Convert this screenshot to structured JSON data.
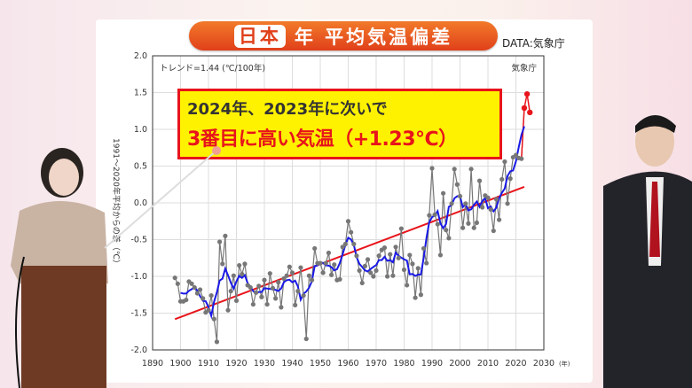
{
  "header": {
    "title_tag": "日本",
    "title": "年 平均気温偏差",
    "source": "DATA:気象庁"
  },
  "callout": {
    "line1": "2024年、2023年に次いで",
    "line2": "3番目に高い気温（+1.23℃）"
  },
  "colors": {
    "annual": "#777777",
    "running_mean": "#1a1ae6",
    "trend": "#e8141b",
    "highlight": "#e8141b"
  },
  "chart_data": {
    "type": "line",
    "trend_label": "トレンド=1.44 (℃/100年)",
    "agency_label": "気象庁",
    "ylabel": "1991～2020年平均からの差（℃）",
    "xunit": "(年)",
    "xlim": [
      1890,
      2030
    ],
    "ylim": [
      -2.0,
      2.0
    ],
    "xticks": [
      1890,
      1900,
      1910,
      1920,
      1930,
      1940,
      1950,
      1960,
      1970,
      1980,
      1990,
      2000,
      2010,
      2020,
      2030
    ],
    "yticks": [
      "2.0",
      "1.5",
      "1.0",
      "0.5",
      "0.0",
      "-0.5",
      "-1.0",
      "-1.5",
      "-2.0"
    ],
    "trend_per_100yr": 1.44,
    "start_year": 1898,
    "annual": [
      -1.02,
      -1.1,
      -1.34,
      -1.34,
      -1.32,
      -1.07,
      -1.1,
      -1.15,
      -1.23,
      -1.18,
      -1.3,
      -1.49,
      -1.46,
      -1.26,
      -1.58,
      -1.89,
      -0.53,
      -0.83,
      -0.45,
      -1.46,
      -1.2,
      -0.99,
      -1.33,
      -0.85,
      -0.97,
      -0.83,
      -1.12,
      -1.15,
      -1.38,
      -1.22,
      -1.13,
      -1.28,
      -1.05,
      -1.38,
      -0.96,
      -1.16,
      -1.3,
      -1.08,
      -1.42,
      -1.03,
      -0.99,
      -0.87,
      -0.95,
      -1.39,
      -1.2,
      -0.88,
      -1.26,
      -1.85,
      -0.99,
      -1.05,
      -0.62,
      -0.82,
      -0.82,
      -0.95,
      -0.82,
      -0.68,
      -0.98,
      -0.84,
      -1.05,
      -1.04,
      -0.6,
      -0.56,
      -0.25,
      -0.4,
      -0.56,
      -0.72,
      -0.92,
      -1.09,
      -0.86,
      -0.77,
      -0.95,
      -1.0,
      -0.92,
      -0.72,
      -0.64,
      -0.61,
      -1.0,
      -0.7,
      -0.99,
      -0.6,
      -0.75,
      -0.35,
      -0.91,
      -1.12,
      -0.71,
      -0.83,
      -1.29,
      -0.89,
      -1.25,
      -0.62,
      -0.82,
      -0.17,
      0.47,
      -0.16,
      -0.29,
      -0.71,
      0.13,
      -0.37,
      -0.48,
      -0.01,
      0.46,
      0.25,
      0.09,
      -0.34,
      -0.01,
      -0.28,
      0.46,
      -0.34,
      -0.27,
      0.3,
      -0.06,
      0.1,
      0.07,
      -0.09,
      -0.38,
      0.05,
      -0.23,
      0.32,
      0.56,
      -0.01,
      0.33,
      0.62,
      0.65,
      0.61,
      0.6,
      1.29,
      1.48,
      1.23
    ],
    "highlight_years": [
      2023,
      2024,
      2025
    ]
  }
}
